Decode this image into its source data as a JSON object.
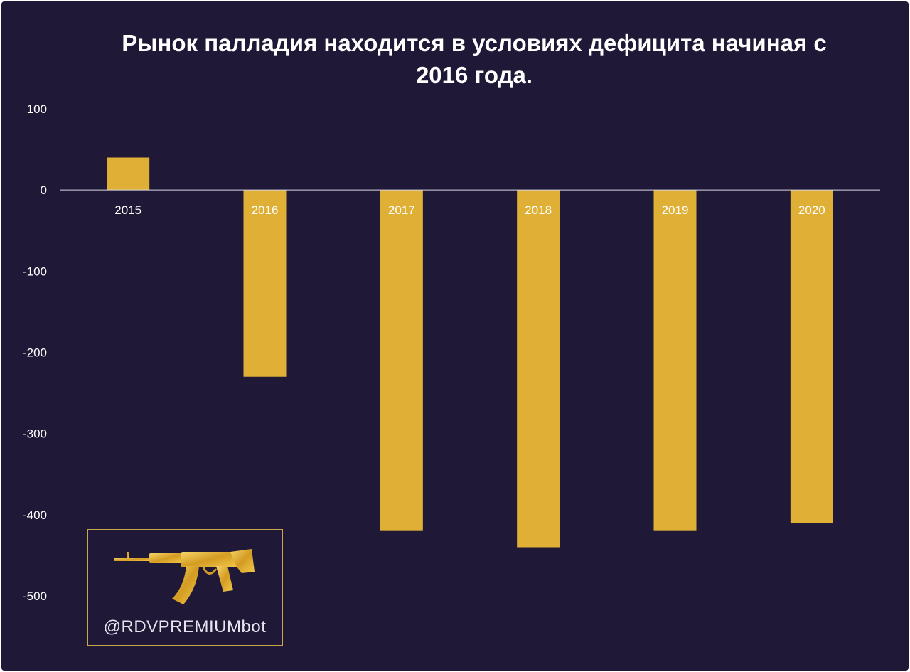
{
  "chart_data": {
    "type": "bar",
    "title": "Рынок палладия находится в условиях дефицита начиная с 2016 года.",
    "categories": [
      "2015",
      "2016",
      "2017",
      "2018",
      "2019",
      "2020"
    ],
    "values": [
      40,
      -230,
      -420,
      -440,
      -420,
      -410
    ],
    "ylim": [
      -500,
      100
    ],
    "yticks": [
      "100",
      "0",
      "-100",
      "-200",
      "-300",
      "-400",
      "-500"
    ],
    "xlabel": "",
    "ylabel": "",
    "grid": false,
    "legend": "none",
    "bar_color": "#e0b036",
    "background": "#1f1937",
    "text_color": "#ffffff"
  },
  "watermark": {
    "handle": "@RDVPREMIUMbot",
    "icon": "gold-rifle-icon",
    "border_color": "#c9a74a"
  }
}
